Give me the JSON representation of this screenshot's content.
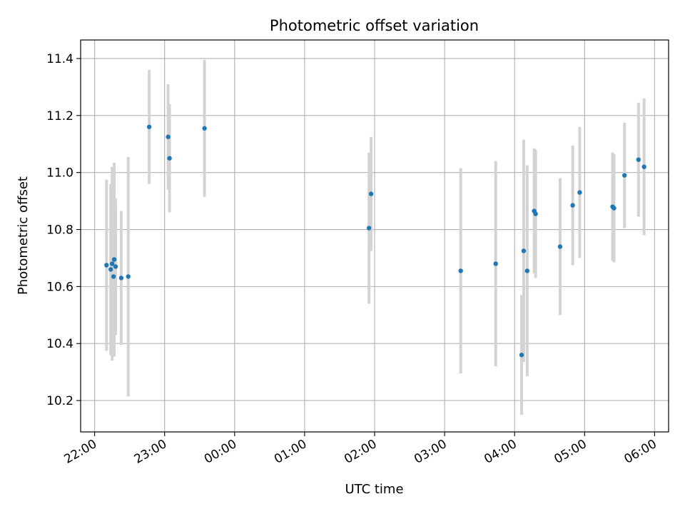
{
  "chart_data": {
    "type": "scatter",
    "title": "Photometric offset variation",
    "xlabel": "UTC time",
    "ylabel": "Photometric offset",
    "grid": true,
    "xlim_hours": [
      21.8,
      30.2
    ],
    "ylim": [
      10.09,
      11.465
    ],
    "x_ticks": [
      {
        "value": 22,
        "label": "22:00"
      },
      {
        "value": 23,
        "label": "23:00"
      },
      {
        "value": 24,
        "label": "00:00"
      },
      {
        "value": 25,
        "label": "01:00"
      },
      {
        "value": 26,
        "label": "02:00"
      },
      {
        "value": 27,
        "label": "03:00"
      },
      {
        "value": 28,
        "label": "04:00"
      },
      {
        "value": 29,
        "label": "05:00"
      },
      {
        "value": 30,
        "label": "06:00"
      }
    ],
    "y_ticks": [
      {
        "value": 10.2,
        "label": "10.2"
      },
      {
        "value": 10.4,
        "label": "10.4"
      },
      {
        "value": 10.6,
        "label": "10.6"
      },
      {
        "value": 10.8,
        "label": "10.8"
      },
      {
        "value": 11.0,
        "label": "11.0"
      },
      {
        "value": 11.2,
        "label": "11.2"
      },
      {
        "value": 11.4,
        "label": "11.4"
      }
    ],
    "point_color": "#1f77b4",
    "errorbar_color": "#d3d3d3",
    "points": [
      {
        "x": 22.17,
        "y": 10.675,
        "err": 0.3
      },
      {
        "x": 22.23,
        "y": 10.66,
        "err": 0.3
      },
      {
        "x": 22.25,
        "y": 10.68,
        "err": 0.34
      },
      {
        "x": 22.27,
        "y": 10.635,
        "err": 0.28
      },
      {
        "x": 22.28,
        "y": 10.695,
        "err": 0.34
      },
      {
        "x": 22.3,
        "y": 10.67,
        "err": 0.24
      },
      {
        "x": 22.38,
        "y": 10.63,
        "err": 0.235
      },
      {
        "x": 22.48,
        "y": 10.635,
        "err": 0.42
      },
      {
        "x": 22.78,
        "y": 11.16,
        "err": 0.2
      },
      {
        "x": 23.05,
        "y": 11.125,
        "err": 0.185
      },
      {
        "x": 23.07,
        "y": 11.05,
        "err": 0.19
      },
      {
        "x": 23.57,
        "y": 11.155,
        "err": 0.24
      },
      {
        "x": 25.92,
        "y": 10.805,
        "err": 0.265
      },
      {
        "x": 25.95,
        "y": 10.925,
        "err": 0.2
      },
      {
        "x": 27.23,
        "y": 10.655,
        "err": 0.36
      },
      {
        "x": 27.73,
        "y": 10.68,
        "err": 0.36
      },
      {
        "x": 28.1,
        "y": 10.36,
        "err": 0.21
      },
      {
        "x": 28.13,
        "y": 10.725,
        "err": 0.39
      },
      {
        "x": 28.18,
        "y": 10.655,
        "err": 0.37
      },
      {
        "x": 28.28,
        "y": 10.865,
        "err": 0.22
      },
      {
        "x": 28.3,
        "y": 10.855,
        "err": 0.225
      },
      {
        "x": 28.65,
        "y": 10.74,
        "err": 0.24
      },
      {
        "x": 28.83,
        "y": 10.885,
        "err": 0.21
      },
      {
        "x": 28.93,
        "y": 10.93,
        "err": 0.23
      },
      {
        "x": 29.4,
        "y": 10.88,
        "err": 0.19
      },
      {
        "x": 29.42,
        "y": 10.875,
        "err": 0.19
      },
      {
        "x": 29.57,
        "y": 10.99,
        "err": 0.185
      },
      {
        "x": 29.77,
        "y": 11.045,
        "err": 0.2
      },
      {
        "x": 29.85,
        "y": 11.02,
        "err": 0.24
      }
    ]
  }
}
